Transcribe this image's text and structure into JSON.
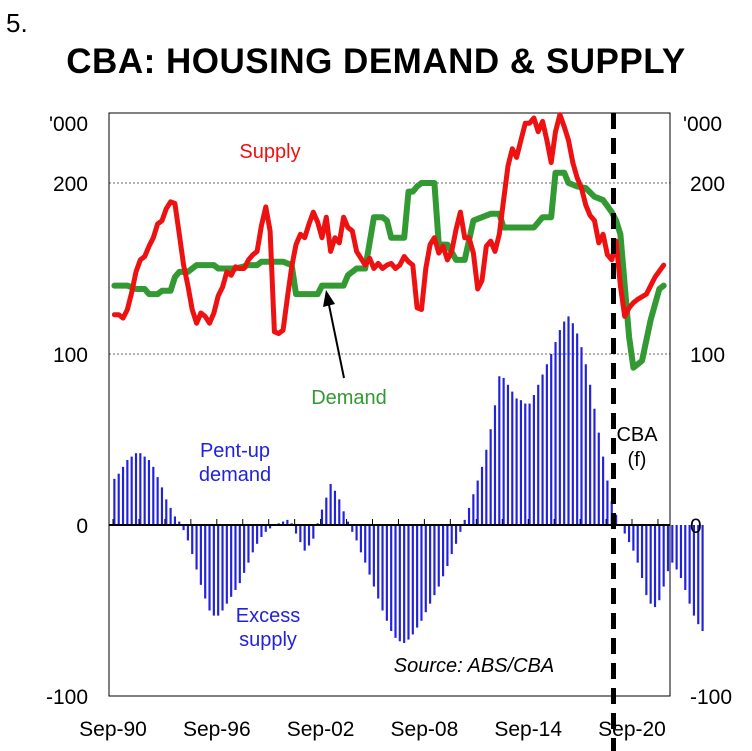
{
  "figure_number": "5.",
  "chart_data": {
    "type": "line+bar",
    "title": "CBA: HOUSING DEMAND & SUPPLY",
    "unit_label_left": "'000",
    "unit_label_right": "'000",
    "ylim": [
      -100,
      240
    ],
    "y_ticks": [
      -100,
      0,
      100,
      200
    ],
    "y_tick_labels": [
      "-100",
      "0",
      "100",
      "200"
    ],
    "x_ticks": [
      1990.67,
      1996.67,
      2002.67,
      2008.67,
      2014.67,
      2020.67
    ],
    "x_tick_labels": [
      "Sep-90",
      "Sep-96",
      "Sep-02",
      "Sep-08",
      "Sep-14",
      "Sep-20"
    ],
    "xlim": [
      1990.5,
      2023.25
    ],
    "forecast_start": 2019.6,
    "forecast_label_line1": "CBA",
    "forecast_label_line2": "(f)",
    "annotations": {
      "supply": "Supply",
      "demand": "Demand",
      "pentup_line1": "Pent-up",
      "pentup_line2": "demand",
      "excess_line1": "Excess",
      "excess_line2": "supply",
      "source": "Source: ABS/CBA"
    },
    "series": [
      {
        "name": "Supply",
        "color": "#ee1111",
        "points": [
          [
            1990.75,
            123
          ],
          [
            1991.0,
            123
          ],
          [
            1991.25,
            121
          ],
          [
            1991.5,
            126
          ],
          [
            1991.75,
            136
          ],
          [
            1992.0,
            148
          ],
          [
            1992.25,
            155
          ],
          [
            1992.5,
            157
          ],
          [
            1992.75,
            163
          ],
          [
            1993.0,
            168
          ],
          [
            1993.25,
            176
          ],
          [
            1993.5,
            178
          ],
          [
            1993.75,
            185
          ],
          [
            1994.0,
            189
          ],
          [
            1994.25,
            188
          ],
          [
            1994.5,
            170
          ],
          [
            1994.75,
            152
          ],
          [
            1995.0,
            140
          ],
          [
            1995.25,
            126
          ],
          [
            1995.5,
            118
          ],
          [
            1995.75,
            124
          ],
          [
            1996.0,
            122
          ],
          [
            1996.25,
            118
          ],
          [
            1996.5,
            124
          ],
          [
            1996.75,
            134
          ],
          [
            1997.0,
            139
          ],
          [
            1997.25,
            148
          ],
          [
            1997.5,
            146
          ],
          [
            1997.75,
            151
          ],
          [
            1998.0,
            150
          ],
          [
            1998.25,
            150
          ],
          [
            1998.5,
            155
          ],
          [
            1998.75,
            158
          ],
          [
            1999.0,
            160
          ],
          [
            1999.25,
            175
          ],
          [
            1999.5,
            186
          ],
          [
            1999.75,
            172
          ],
          [
            2000.0,
            113
          ],
          [
            2000.25,
            112
          ],
          [
            2000.5,
            114
          ],
          [
            2000.75,
            133
          ],
          [
            2001.0,
            151
          ],
          [
            2001.25,
            164
          ],
          [
            2001.5,
            170
          ],
          [
            2001.75,
            168
          ],
          [
            2002.0,
            176
          ],
          [
            2002.25,
            183
          ],
          [
            2002.5,
            177
          ],
          [
            2002.75,
            168
          ],
          [
            2003.0,
            180
          ],
          [
            2003.25,
            160
          ],
          [
            2003.5,
            168
          ],
          [
            2003.75,
            165
          ],
          [
            2004.0,
            180
          ],
          [
            2004.25,
            174
          ],
          [
            2004.5,
            172
          ],
          [
            2004.75,
            160
          ],
          [
            2005.0,
            156
          ],
          [
            2005.25,
            152
          ],
          [
            2005.5,
            156
          ],
          [
            2005.75,
            150
          ],
          [
            2006.0,
            153
          ],
          [
            2006.25,
            150
          ],
          [
            2006.5,
            152
          ],
          [
            2006.75,
            153
          ],
          [
            2007.0,
            150
          ],
          [
            2007.25,
            152
          ],
          [
            2007.5,
            157
          ],
          [
            2007.75,
            154
          ],
          [
            2008.0,
            152
          ],
          [
            2008.25,
            127
          ],
          [
            2008.5,
            126
          ],
          [
            2008.75,
            150
          ],
          [
            2009.0,
            164
          ],
          [
            2009.25,
            168
          ],
          [
            2009.5,
            159
          ],
          [
            2009.75,
            163
          ],
          [
            2010.0,
            155
          ],
          [
            2010.25,
            160
          ],
          [
            2010.5,
            173
          ],
          [
            2010.75,
            183
          ],
          [
            2011.0,
            168
          ],
          [
            2011.25,
            168
          ],
          [
            2011.5,
            159
          ],
          [
            2011.75,
            138
          ],
          [
            2012.0,
            143
          ],
          [
            2012.25,
            163
          ],
          [
            2012.5,
            166
          ],
          [
            2012.75,
            160
          ],
          [
            2013.0,
            170
          ],
          [
            2013.25,
            190
          ],
          [
            2013.5,
            210
          ],
          [
            2013.75,
            220
          ],
          [
            2014.0,
            215
          ],
          [
            2014.25,
            225
          ],
          [
            2014.5,
            235
          ],
          [
            2014.75,
            235
          ],
          [
            2015.0,
            238
          ],
          [
            2015.25,
            230
          ],
          [
            2015.5,
            236
          ],
          [
            2015.75,
            225
          ],
          [
            2016.0,
            212
          ],
          [
            2016.25,
            230
          ],
          [
            2016.5,
            240
          ],
          [
            2016.75,
            233
          ],
          [
            2017.0,
            225
          ],
          [
            2017.25,
            212
          ],
          [
            2017.5,
            203
          ],
          [
            2017.75,
            197
          ],
          [
            2018.0,
            187
          ],
          [
            2018.25,
            181
          ],
          [
            2018.5,
            178
          ],
          [
            2018.75,
            165
          ],
          [
            2019.0,
            170
          ],
          [
            2019.25,
            158
          ],
          [
            2019.5,
            155
          ],
          [
            2019.75,
            166
          ],
          [
            2020.0,
            140
          ],
          [
            2020.25,
            122
          ],
          [
            2020.5,
            127
          ],
          [
            2020.75,
            130
          ],
          [
            2021.0,
            132
          ],
          [
            2021.5,
            135
          ],
          [
            2022.0,
            145
          ],
          [
            2022.5,
            152
          ]
        ]
      },
      {
        "name": "Demand",
        "color": "#339933",
        "points": [
          [
            1990.75,
            140
          ],
          [
            1991.5,
            140
          ],
          [
            1992.0,
            138
          ],
          [
            1992.5,
            138
          ],
          [
            1992.75,
            135
          ],
          [
            1993.25,
            135
          ],
          [
            1993.5,
            137
          ],
          [
            1993.75,
            137
          ],
          [
            1994.0,
            137
          ],
          [
            1994.25,
            145
          ],
          [
            1994.5,
            148
          ],
          [
            1995.0,
            148
          ],
          [
            1995.5,
            152
          ],
          [
            1996.0,
            152
          ],
          [
            1996.5,
            152
          ],
          [
            1996.75,
            150
          ],
          [
            1997.5,
            150
          ],
          [
            1997.75,
            150
          ],
          [
            1998.5,
            152
          ],
          [
            1999.0,
            152
          ],
          [
            1999.25,
            154
          ],
          [
            1999.75,
            154
          ],
          [
            2000.5,
            154
          ],
          [
            2000.75,
            153
          ],
          [
            2001.0,
            152
          ],
          [
            2001.25,
            135
          ],
          [
            2001.5,
            135
          ],
          [
            2002.25,
            135
          ],
          [
            2002.5,
            135
          ],
          [
            2002.75,
            140
          ],
          [
            2003.5,
            140
          ],
          [
            2004.0,
            140
          ],
          [
            2004.25,
            146
          ],
          [
            2004.75,
            150
          ],
          [
            2005.25,
            150
          ],
          [
            2005.5,
            165
          ],
          [
            2005.75,
            180
          ],
          [
            2006.0,
            180
          ],
          [
            2006.25,
            180
          ],
          [
            2006.5,
            178
          ],
          [
            2006.75,
            168
          ],
          [
            2007.0,
            168
          ],
          [
            2007.5,
            168
          ],
          [
            2007.75,
            195
          ],
          [
            2008.0,
            195
          ],
          [
            2008.25,
            198
          ],
          [
            2008.5,
            200
          ],
          [
            2008.75,
            200
          ],
          [
            2009.25,
            200
          ],
          [
            2009.5,
            164
          ],
          [
            2010.0,
            164
          ],
          [
            2010.5,
            155
          ],
          [
            2011.0,
            155
          ],
          [
            2011.5,
            178
          ],
          [
            2012.0,
            180
          ],
          [
            2012.5,
            182
          ],
          [
            2013.0,
            182
          ],
          [
            2013.25,
            174
          ],
          [
            2013.75,
            174
          ],
          [
            2014.5,
            174
          ],
          [
            2015.0,
            174
          ],
          [
            2015.5,
            180
          ],
          [
            2016.0,
            180
          ],
          [
            2016.25,
            206
          ],
          [
            2016.75,
            206
          ],
          [
            2017.0,
            200
          ],
          [
            2017.5,
            198
          ],
          [
            2018.0,
            197
          ],
          [
            2018.5,
            192
          ],
          [
            2019.0,
            190
          ],
          [
            2019.5,
            183
          ],
          [
            2019.75,
            178
          ],
          [
            2020.0,
            170
          ],
          [
            2020.5,
            110
          ],
          [
            2020.75,
            92
          ],
          [
            2021.25,
            96
          ],
          [
            2021.75,
            120
          ],
          [
            2022.25,
            138
          ],
          [
            2022.5,
            140
          ]
        ]
      },
      {
        "name": "Pent-up demand / Excess supply",
        "type": "bar",
        "color": "#2222dd",
        "x_start": 1990.75,
        "step": 0.25,
        "values": [
          27,
          30,
          34,
          38,
          40,
          42,
          42,
          40,
          38,
          34,
          28,
          22,
          15,
          10,
          5,
          2,
          -3,
          -9,
          -17,
          -26,
          -35,
          -43,
          -50,
          -53,
          -53,
          -50,
          -46,
          -42,
          -38,
          -34,
          -28,
          -22,
          -16,
          -11,
          -7,
          -4,
          -2,
          0,
          1,
          2,
          3,
          1,
          -5,
          -10,
          -15,
          -12,
          -8,
          1,
          9,
          16,
          24,
          20,
          15,
          8,
          2,
          -4,
          -9,
          -16,
          -22,
          -29,
          -36,
          -43,
          -50,
          -56,
          -62,
          -66,
          -68,
          -69,
          -67,
          -64,
          -60,
          -56,
          -51,
          -46,
          -41,
          -36,
          -30,
          -24,
          -17,
          -11,
          -4,
          3,
          10,
          18,
          26,
          34,
          44,
          56,
          70,
          87,
          86,
          82,
          78,
          74,
          73,
          71,
          71,
          76,
          82,
          88,
          94,
          100,
          107,
          114,
          119,
          122,
          118,
          112,
          104,
          94,
          82,
          68,
          54,
          40,
          26,
          14,
          6,
          0,
          -5,
          -10,
          -15,
          -22,
          -31,
          -41,
          -46,
          -48,
          -44,
          -36,
          -27,
          -22,
          -26,
          -31,
          -38,
          -46,
          -53,
          -58,
          -62
        ]
      }
    ]
  }
}
